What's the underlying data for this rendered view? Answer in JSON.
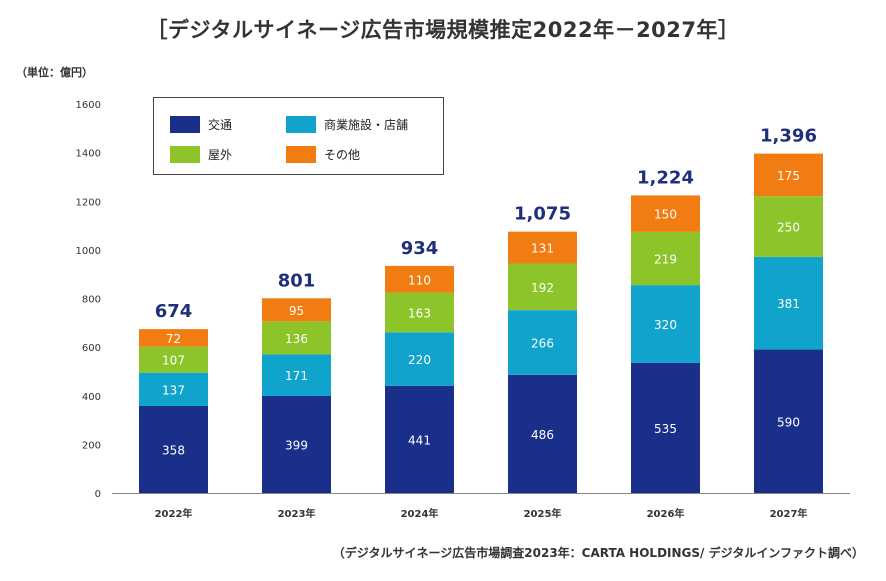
{
  "chart_data": {
    "type": "bar",
    "stacked": true,
    "title": "［デジタルサイネージ広告市場規模推定2022年－2027年］",
    "unit_label": "（単位：億円）",
    "source": "（デジタルサイネージ広告市場調査2023年：CARTA HOLDINGS/ デジタルインファクト調べ）",
    "categories": [
      "2022年",
      "2023年",
      "2024年",
      "2025年",
      "2026年",
      "2027年"
    ],
    "ylim": [
      0,
      1600
    ],
    "yticks": [
      "0",
      "200",
      "400",
      "600",
      "800",
      "1000",
      "1200",
      "1400",
      "1600"
    ],
    "series": [
      {
        "name": "交通",
        "color": "#1a2f8a",
        "values": [
          358,
          399,
          441,
          486,
          535,
          590
        ],
        "labels": [
          "358",
          "399",
          "441",
          "486",
          "535",
          "590"
        ]
      },
      {
        "name": "商業施設・店舗",
        "color": "#10a3cc",
        "values": [
          137,
          171,
          220,
          266,
          320,
          381
        ],
        "labels": [
          "137",
          "171",
          "220",
          "266",
          "320",
          "381"
        ]
      },
      {
        "name": "屋外",
        "color": "#8cc42a",
        "values": [
          107,
          136,
          163,
          192,
          219,
          250
        ],
        "labels": [
          "107",
          "136",
          "163",
          "192",
          "219",
          "250"
        ]
      },
      {
        "name": "その他",
        "color": "#f07c12",
        "values": [
          72,
          95,
          110,
          131,
          150,
          175
        ],
        "labels": [
          "72",
          "95",
          "110",
          "131",
          "150",
          "175"
        ]
      }
    ],
    "totals": [
      674,
      801,
      934,
      1075,
      1224,
      1396
    ],
    "total_labels": [
      "674",
      "801",
      "934",
      "1,075",
      "1,224",
      "1,396"
    ],
    "grid": false,
    "legend_position": "top-left"
  }
}
